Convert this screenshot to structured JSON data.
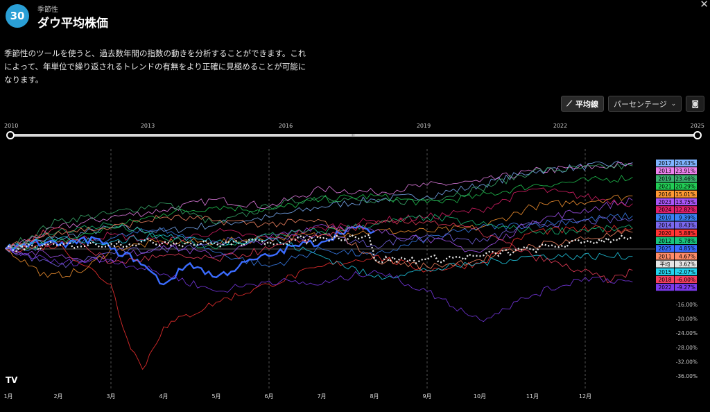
{
  "header": {
    "badge": "30",
    "category": "季節性",
    "title": "ダウ平均株価",
    "close_icon": "close-icon"
  },
  "description": "季節性のツールを使うと、過去数年間の指数の動きを分析することができます。これによって、年単位で繰り返されるトレンドの有無をより正確に見極めることが可能になります。",
  "toolbar": {
    "average_label": "平均線",
    "average_icon": "line-chart-icon",
    "mode_label": "パーセンテージ",
    "mode_icon": "chevron-down-icon",
    "snapshot_icon": "camera-icon"
  },
  "year_range": {
    "ticks": [
      "2010",
      "2013",
      "2016",
      "2019",
      "2022",
      "2025"
    ],
    "start": "2010",
    "end": "2025"
  },
  "logo_text": "TV",
  "chart_data": {
    "type": "line",
    "x_axis": {
      "labels": [
        "1月",
        "2月",
        "3月",
        "4月",
        "5月",
        "6月",
        "7月",
        "8月",
        "9月",
        "10月",
        "11月",
        "12月"
      ]
    },
    "y_axis": {
      "unit": "%",
      "ylim": [
        -36,
        26
      ],
      "tick_labels": [
        "-16.00%",
        "-20.00%",
        "-24.00%",
        "-28.00%",
        "-32.00%",
        "-36.00%"
      ],
      "tick_values": [
        -16,
        -20,
        -24,
        -28,
        -32,
        -36
      ]
    },
    "grid": "dashed vertical at quarter starts",
    "legend_placement": "right",
    "series": [
      {
        "name": "2017",
        "final": "24.43%",
        "color": "#7fb3ff",
        "points": [
          [
            0,
            0
          ],
          [
            1,
            3
          ],
          [
            2,
            6
          ],
          [
            3,
            5
          ],
          [
            4,
            7
          ],
          [
            5,
            9
          ],
          [
            6,
            12
          ],
          [
            7,
            14
          ],
          [
            8,
            15
          ],
          [
            9,
            18
          ],
          [
            10,
            22
          ],
          [
            11.9,
            24.4
          ]
        ]
      },
      {
        "name": "2013",
        "final": "23.91%",
        "color": "#ee82ee",
        "points": [
          [
            0,
            0
          ],
          [
            1,
            6
          ],
          [
            2,
            9
          ],
          [
            3,
            11
          ],
          [
            4,
            14
          ],
          [
            5,
            12
          ],
          [
            6,
            17
          ],
          [
            7,
            16
          ],
          [
            8,
            18
          ],
          [
            9,
            19
          ],
          [
            10,
            22
          ],
          [
            11.9,
            23.9
          ]
        ]
      },
      {
        "name": "2019",
        "final": "23.46%",
        "color": "#3cb371",
        "points": [
          [
            0,
            0
          ],
          [
            1,
            8
          ],
          [
            2,
            10
          ],
          [
            3,
            13
          ],
          [
            4,
            7
          ],
          [
            5,
            12
          ],
          [
            6,
            15
          ],
          [
            7,
            13
          ],
          [
            8,
            14
          ],
          [
            9,
            17
          ],
          [
            10,
            22
          ],
          [
            11.9,
            23.5
          ]
        ]
      },
      {
        "name": "2021",
        "final": "20.29%",
        "color": "#22cc55",
        "points": [
          [
            0,
            0
          ],
          [
            1,
            2
          ],
          [
            2,
            6
          ],
          [
            3,
            10
          ],
          [
            4,
            12
          ],
          [
            5,
            11
          ],
          [
            6,
            14
          ],
          [
            7,
            15
          ],
          [
            8,
            13
          ],
          [
            9,
            15
          ],
          [
            10,
            18
          ],
          [
            11.9,
            20.3
          ]
        ]
      },
      {
        "name": "2016",
        "final": "15.01%",
        "color": "#ff9933",
        "points": [
          [
            0,
            0
          ],
          [
            0.8,
            -8
          ],
          [
            1.5,
            -6
          ],
          [
            2,
            0
          ],
          [
            3,
            2
          ],
          [
            4,
            2
          ],
          [
            5,
            3
          ],
          [
            6,
            4
          ],
          [
            7,
            5
          ],
          [
            8,
            5
          ],
          [
            9,
            6
          ],
          [
            10,
            12
          ],
          [
            11.9,
            15.0
          ]
        ]
      },
      {
        "name": "2023",
        "final": "13.75%",
        "color": "#a855f7",
        "points": [
          [
            0,
            0
          ],
          [
            1,
            -2
          ],
          [
            2,
            -3
          ],
          [
            3,
            1
          ],
          [
            4,
            -2
          ],
          [
            5,
            3
          ],
          [
            6,
            7
          ],
          [
            7,
            5
          ],
          [
            8,
            3
          ],
          [
            9,
            -1
          ],
          [
            10,
            8
          ],
          [
            11.9,
            13.8
          ]
        ]
      },
      {
        "name": "2024",
        "final": "12.82%",
        "color": "#e0206a",
        "points": [
          [
            0,
            0
          ],
          [
            1,
            2
          ],
          [
            2,
            4
          ],
          [
            3,
            2
          ],
          [
            4,
            5
          ],
          [
            5,
            3
          ],
          [
            6,
            6
          ],
          [
            7,
            8
          ],
          [
            8,
            9
          ],
          [
            9,
            11
          ],
          [
            10,
            17
          ],
          [
            11.9,
            12.8
          ]
        ]
      },
      {
        "name": "2010",
        "final": "9.39%",
        "color": "#3b82f6",
        "points": [
          [
            0,
            0
          ],
          [
            1,
            1
          ],
          [
            2,
            3
          ],
          [
            3,
            6
          ],
          [
            4,
            -1
          ],
          [
            5,
            -5
          ],
          [
            6,
            0
          ],
          [
            7,
            -2
          ],
          [
            8,
            3
          ],
          [
            9,
            6
          ],
          [
            10,
            7
          ],
          [
            11.9,
            9.4
          ]
        ]
      },
      {
        "name": "2014",
        "final": "8.43%",
        "color": "#7b68ee",
        "points": [
          [
            0,
            0
          ],
          [
            1,
            -5
          ],
          [
            2,
            -1
          ],
          [
            3,
            0
          ],
          [
            4,
            2
          ],
          [
            5,
            3
          ],
          [
            6,
            4
          ],
          [
            7,
            1
          ],
          [
            8,
            4
          ],
          [
            9,
            2
          ],
          [
            10,
            7
          ],
          [
            11.9,
            8.4
          ]
        ]
      },
      {
        "name": "2020",
        "final": "5.88%",
        "color": "#ff3333",
        "points": [
          [
            0,
            0
          ],
          [
            1,
            1
          ],
          [
            2,
            -10
          ],
          [
            2.3,
            -25
          ],
          [
            2.6,
            -34
          ],
          [
            3,
            -22
          ],
          [
            4,
            -15
          ],
          [
            5,
            -10
          ],
          [
            6,
            -5
          ],
          [
            7,
            -2
          ],
          [
            8,
            -6
          ],
          [
            9,
            -4
          ],
          [
            10,
            5
          ],
          [
            11.9,
            5.9
          ]
        ]
      },
      {
        "name": "2012",
        "final": "5.78%",
        "color": "#19c37d",
        "points": [
          [
            0,
            0
          ],
          [
            1,
            5
          ],
          [
            2,
            7
          ],
          [
            3,
            3
          ],
          [
            4,
            0
          ],
          [
            5,
            4
          ],
          [
            6,
            5
          ],
          [
            7,
            7
          ],
          [
            8,
            9
          ],
          [
            9,
            7
          ],
          [
            10,
            5
          ],
          [
            11.9,
            5.8
          ]
        ]
      },
      {
        "name": "2025",
        "final": "4.85%",
        "color": "#3b6cff",
        "points": [
          [
            0,
            0
          ],
          [
            0.5,
            2
          ],
          [
            1,
            1
          ],
          [
            1.7,
            3
          ],
          [
            2,
            0
          ],
          [
            2.5,
            -3
          ],
          [
            3,
            -10
          ],
          [
            3.5,
            -4
          ],
          [
            4,
            -8
          ],
          [
            4.7,
            -3
          ],
          [
            5,
            -2
          ],
          [
            5.5,
            1
          ],
          [
            6,
            2
          ],
          [
            6.5,
            6
          ],
          [
            7,
            5
          ]
        ]
      },
      {
        "name": "2011",
        "final": "4.67%",
        "color": "#ff8c69",
        "points": [
          [
            0,
            0
          ],
          [
            1,
            5
          ],
          [
            2,
            6
          ],
          [
            3,
            9
          ],
          [
            4,
            8
          ],
          [
            5,
            7
          ],
          [
            6,
            8
          ],
          [
            7,
            -3
          ],
          [
            8,
            -5
          ],
          [
            9,
            -3
          ],
          [
            10,
            1
          ],
          [
            11.9,
            4.7
          ]
        ]
      },
      {
        "name": "平均",
        "final": "3.62%",
        "color": "#e6e6e6",
        "points": [
          [
            0,
            0
          ],
          [
            1,
            1
          ],
          [
            2,
            1.5
          ],
          [
            3,
            2
          ],
          [
            4,
            1.5
          ],
          [
            5,
            2
          ],
          [
            6,
            3
          ],
          [
            6.9,
            4
          ],
          [
            7,
            -3
          ],
          [
            8,
            -3
          ],
          [
            9,
            -2
          ],
          [
            10,
            0
          ],
          [
            11,
            2
          ],
          [
            11.9,
            3.6
          ]
        ]
      },
      {
        "name": "2015",
        "final": "-2.07%",
        "color": "#22d3ee",
        "points": [
          [
            0,
            0
          ],
          [
            1,
            3
          ],
          [
            2,
            2
          ],
          [
            3,
            4
          ],
          [
            4,
            2
          ],
          [
            5,
            3
          ],
          [
            6,
            -2
          ],
          [
            7,
            -8
          ],
          [
            8,
            -6
          ],
          [
            9,
            -4
          ],
          [
            10,
            -2
          ],
          [
            11.9,
            -2.1
          ]
        ]
      },
      {
        "name": "2018",
        "final": "-6.00%",
        "color": "#f43f5e",
        "points": [
          [
            0,
            0
          ],
          [
            1,
            6
          ],
          [
            2,
            -4
          ],
          [
            3,
            -2
          ],
          [
            4,
            -3
          ],
          [
            5,
            0
          ],
          [
            6,
            4
          ],
          [
            7,
            7
          ],
          [
            8,
            8
          ],
          [
            9,
            5
          ],
          [
            10,
            -2
          ],
          [
            11.5,
            -9
          ],
          [
            11.9,
            -6.0
          ]
        ]
      },
      {
        "name": "2022",
        "final": "-9.27%",
        "color": "#7c3aed",
        "points": [
          [
            0,
            0
          ],
          [
            1,
            -4
          ],
          [
            2,
            -3
          ],
          [
            3,
            -7
          ],
          [
            4,
            -12
          ],
          [
            5,
            -9
          ],
          [
            6,
            -10
          ],
          [
            7,
            -6
          ],
          [
            8,
            -12
          ],
          [
            9,
            -20
          ],
          [
            10,
            -13
          ],
          [
            11,
            -8
          ],
          [
            11.9,
            -9.3
          ]
        ]
      }
    ]
  }
}
